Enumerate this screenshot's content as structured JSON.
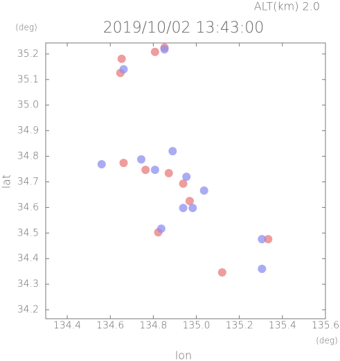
{
  "chart_data": {
    "type": "scatter",
    "title": "2019/10/02 13:43:00",
    "subtitle": "ALT(km) 2.0",
    "x_label": "lon",
    "y_label": "lat",
    "x_unit": "(deg)",
    "y_unit": "(deg)",
    "xlim": [
      134.3,
      135.6
    ],
    "ylim": [
      34.165,
      35.243
    ],
    "xticks": [
      134.4,
      134.6,
      134.8,
      {
        "value": 135,
        "label": "135.0"
      },
      135.2,
      135.4,
      135.6
    ],
    "yticks": [
      34.2,
      34.3,
      34.4,
      34.5,
      34.6,
      34.7,
      34.8,
      34.9,
      {
        "value": 35,
        "label": "35.0"
      },
      35.1,
      35.2
    ],
    "series": [
      {
        "color": "#e97b7b",
        "x": [
          134.808,
          134.653,
          134.647,
          134.662,
          134.764,
          134.872,
          134.939,
          134.969,
          134.823,
          135.334,
          135.12,
          134.852
        ],
        "y": [
          35.208,
          35.181,
          35.126,
          34.774,
          34.747,
          34.734,
          34.693,
          34.625,
          34.503,
          34.476,
          34.346,
          35.225
        ]
      },
      {
        "color": "#8f8ff0",
        "x": [
          134.852,
          134.662,
          134.744,
          134.56,
          134.808,
          134.89,
          134.954,
          134.939,
          134.983,
          134.837,
          135.305,
          135.305,
          135.036
        ],
        "y": [
          35.218,
          35.14,
          34.788,
          34.769,
          34.747,
          34.82,
          34.72,
          34.598,
          34.598,
          34.517,
          34.476,
          34.36,
          34.666
        ]
      }
    ]
  }
}
